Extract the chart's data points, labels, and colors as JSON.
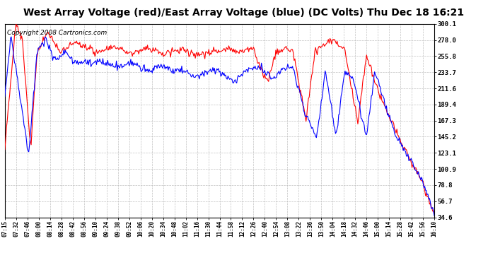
{
  "title": "West Array Voltage (red)/East Array Voltage (blue) (DC Volts) Thu Dec 18 16:21",
  "copyright": "Copyright 2008 Cartronics.com",
  "ylabel_ticks": [
    34.6,
    56.7,
    78.8,
    100.9,
    123.1,
    145.2,
    167.3,
    189.4,
    211.6,
    233.7,
    255.8,
    278.0,
    300.1
  ],
  "x_labels": [
    "07:15",
    "07:32",
    "07:46",
    "08:00",
    "08:14",
    "08:28",
    "08:42",
    "08:56",
    "09:10",
    "09:24",
    "09:38",
    "09:52",
    "10:06",
    "10:20",
    "10:34",
    "10:48",
    "11:02",
    "11:16",
    "11:30",
    "11:44",
    "11:58",
    "12:12",
    "12:26",
    "12:40",
    "12:54",
    "13:08",
    "13:22",
    "13:36",
    "13:50",
    "14:04",
    "14:18",
    "14:32",
    "14:46",
    "15:00",
    "15:14",
    "15:28",
    "15:42",
    "15:56",
    "16:10"
  ],
  "ylim_min": 34.6,
  "ylim_max": 300.1,
  "background_color": "#ffffff",
  "plot_bg_color": "#ffffff",
  "grid_color": "#bbbbbb",
  "red_color": "#ff0000",
  "blue_color": "#0000ff",
  "title_color": "#000000",
  "title_fontsize": 10,
  "copyright_fontsize": 6.5
}
